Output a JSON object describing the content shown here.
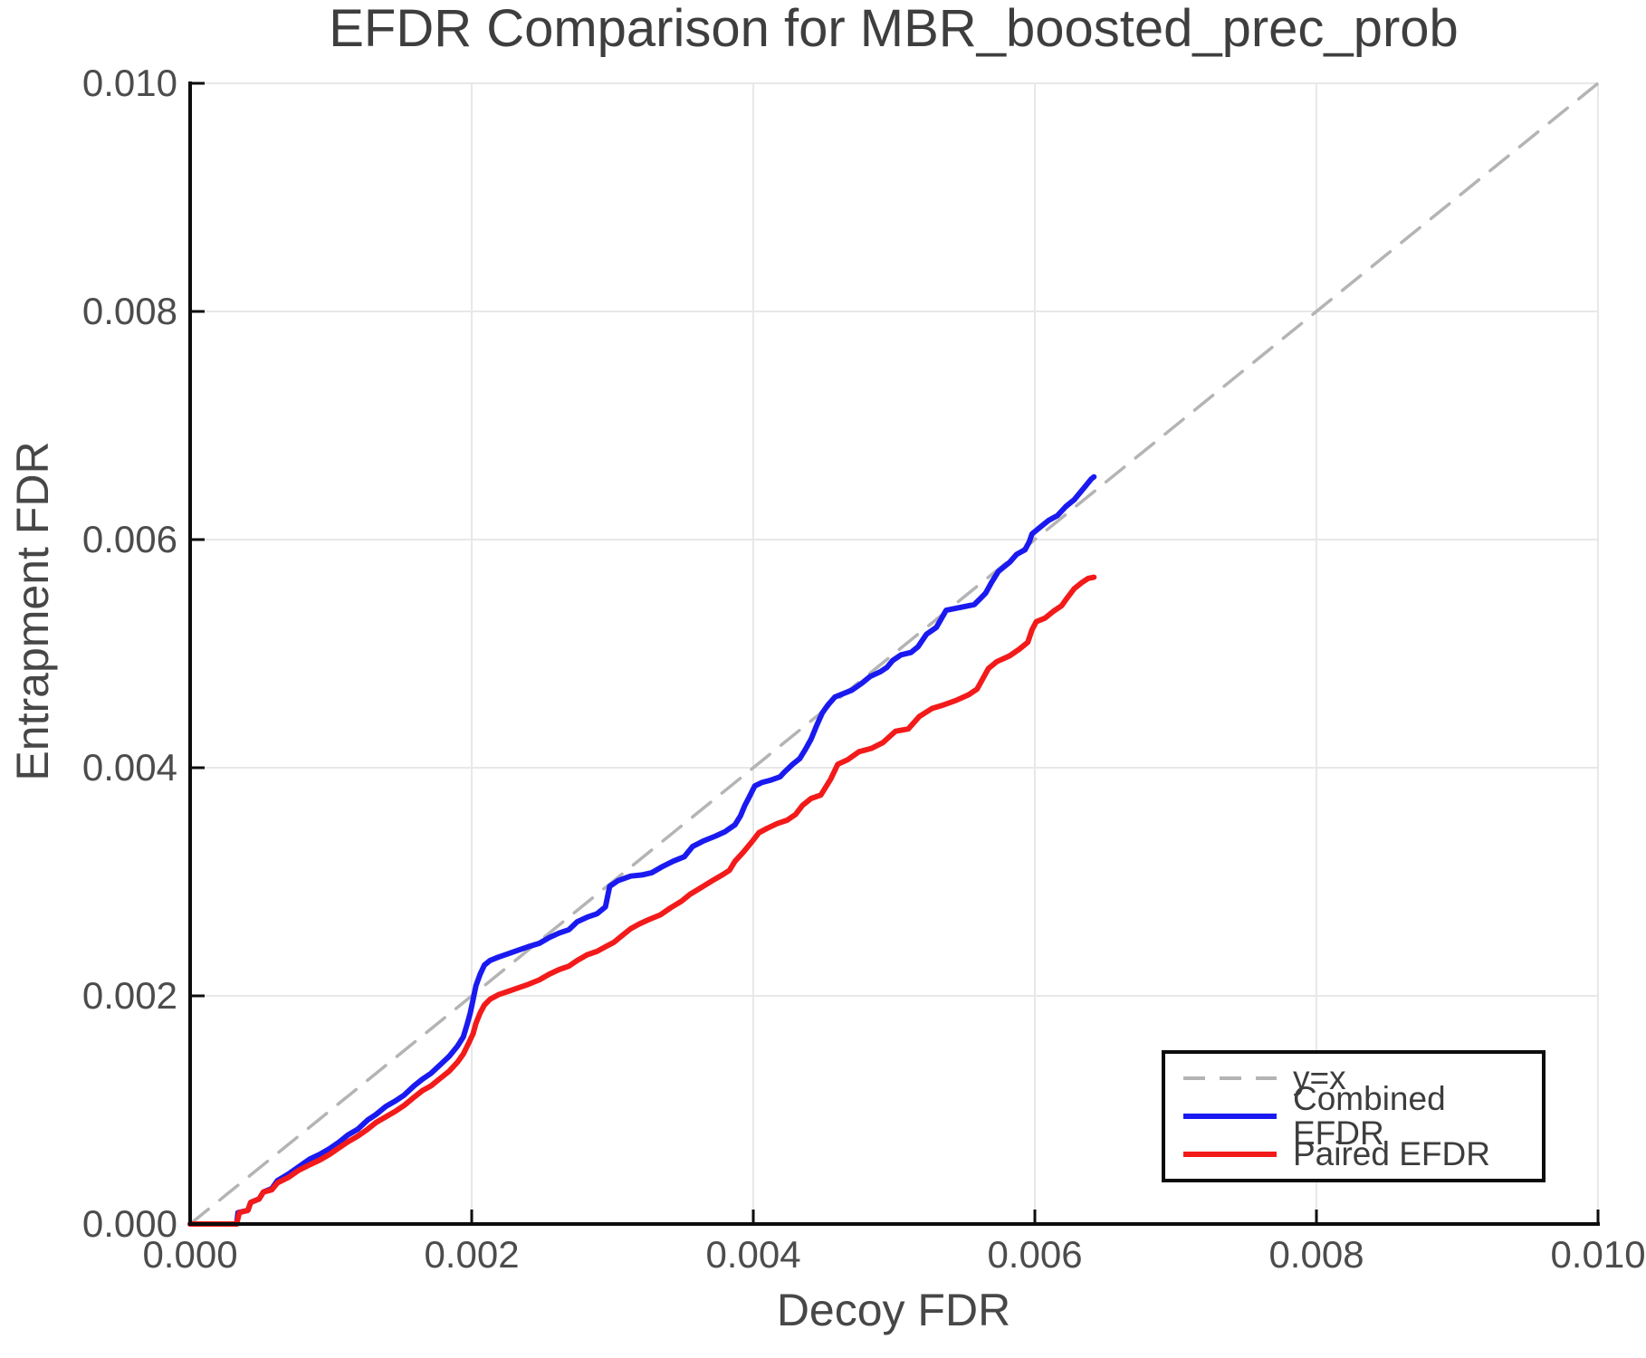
{
  "chart_data": {
    "type": "line",
    "title": "EFDR Comparison for MBR_boosted_prec_prob",
    "xlabel": "Decoy FDR",
    "ylabel": "Entrapment FDR",
    "xlim": [
      0,
      0.01
    ],
    "ylim": [
      0,
      0.01
    ],
    "x_ticks": [
      "0.000",
      "0.002",
      "0.004",
      "0.006",
      "0.008",
      "0.010"
    ],
    "y_ticks": [
      "0.000",
      "0.002",
      "0.004",
      "0.006",
      "0.008",
      "0.010"
    ],
    "grid": true,
    "legend_position": "lower right",
    "colors": {
      "diagonal": "#b4b4b4",
      "combined": "#1a1af0",
      "paired": "#f31a1a",
      "gridline": "#e8e8e8",
      "axis": "#0d0d0d"
    },
    "series": [
      {
        "name": "y=x",
        "style": "dashed",
        "color": "#b4b4b4",
        "points": [
          [
            0,
            0
          ],
          [
            0.01,
            0.01
          ]
        ]
      },
      {
        "name": "Combined EFDR",
        "style": "solid",
        "color": "#1a1af0",
        "points": [
          [
            0.0,
            0.0
          ],
          [
            0.00033,
            0.0
          ],
          [
            0.00034,
            0.0001
          ],
          [
            0.00041,
            0.00012
          ],
          [
            0.00043,
            0.00019
          ],
          [
            0.00049,
            0.00022
          ],
          [
            0.00052,
            0.00028
          ],
          [
            0.00058,
            0.00031
          ],
          [
            0.00062,
            0.00038
          ],
          [
            0.0007,
            0.00044
          ],
          [
            0.00077,
            0.0005
          ],
          [
            0.00085,
            0.00057
          ],
          [
            0.00092,
            0.00061
          ],
          [
            0.00099,
            0.00066
          ],
          [
            0.00106,
            0.00072
          ],
          [
            0.00112,
            0.00078
          ],
          [
            0.00119,
            0.00083
          ],
          [
            0.00126,
            0.00091
          ],
          [
            0.00132,
            0.00096
          ],
          [
            0.00139,
            0.00103
          ],
          [
            0.00146,
            0.00108
          ],
          [
            0.00152,
            0.00113
          ],
          [
            0.00159,
            0.00121
          ],
          [
            0.00165,
            0.00127
          ],
          [
            0.00171,
            0.00132
          ],
          [
            0.00178,
            0.0014
          ],
          [
            0.00184,
            0.00147
          ],
          [
            0.0019,
            0.00156
          ],
          [
            0.00194,
            0.00164
          ],
          [
            0.00197,
            0.00176
          ],
          [
            0.00199,
            0.00185
          ],
          [
            0.00201,
            0.00197
          ],
          [
            0.00203,
            0.00209
          ],
          [
            0.00206,
            0.00219
          ],
          [
            0.00209,
            0.00227
          ],
          [
            0.00213,
            0.00231
          ],
          [
            0.00219,
            0.00234
          ],
          [
            0.00226,
            0.00237
          ],
          [
            0.00233,
            0.0024
          ],
          [
            0.0024,
            0.00243
          ],
          [
            0.00248,
            0.00246
          ],
          [
            0.00255,
            0.00251
          ],
          [
            0.00262,
            0.00255
          ],
          [
            0.00269,
            0.00258
          ],
          [
            0.00275,
            0.00265
          ],
          [
            0.00282,
            0.00269
          ],
          [
            0.00289,
            0.00272
          ],
          [
            0.00295,
            0.00278
          ],
          [
            0.00298,
            0.00296
          ],
          [
            0.00304,
            0.00301
          ],
          [
            0.00313,
            0.00305
          ],
          [
            0.00321,
            0.00306
          ],
          [
            0.00328,
            0.00308
          ],
          [
            0.00335,
            0.00313
          ],
          [
            0.00343,
            0.00318
          ],
          [
            0.00351,
            0.00322
          ],
          [
            0.00357,
            0.00331
          ],
          [
            0.00365,
            0.00336
          ],
          [
            0.00373,
            0.0034
          ],
          [
            0.0038,
            0.00344
          ],
          [
            0.00387,
            0.0035
          ],
          [
            0.00391,
            0.00358
          ],
          [
            0.00394,
            0.00367
          ],
          [
            0.00397,
            0.00374
          ],
          [
            0.00401,
            0.00384
          ],
          [
            0.00406,
            0.00387
          ],
          [
            0.00412,
            0.00389
          ],
          [
            0.00419,
            0.00392
          ],
          [
            0.00422,
            0.00396
          ],
          [
            0.00428,
            0.00403
          ],
          [
            0.00433,
            0.00408
          ],
          [
            0.00437,
            0.00416
          ],
          [
            0.00441,
            0.00425
          ],
          [
            0.00445,
            0.00437
          ],
          [
            0.00449,
            0.00448
          ],
          [
            0.00453,
            0.00455
          ],
          [
            0.00458,
            0.00462
          ],
          [
            0.00464,
            0.00465
          ],
          [
            0.0047,
            0.00468
          ],
          [
            0.00477,
            0.00474
          ],
          [
            0.00483,
            0.0048
          ],
          [
            0.0049,
            0.00484
          ],
          [
            0.00495,
            0.00488
          ],
          [
            0.00499,
            0.00494
          ],
          [
            0.00505,
            0.00499
          ],
          [
            0.00512,
            0.00501
          ],
          [
            0.00517,
            0.00506
          ],
          [
            0.00523,
            0.00517
          ],
          [
            0.0053,
            0.00523
          ],
          [
            0.00537,
            0.00538
          ],
          [
            0.00549,
            0.00541
          ],
          [
            0.00557,
            0.00543
          ],
          [
            0.00561,
            0.00548
          ],
          [
            0.00565,
            0.00553
          ],
          [
            0.00569,
            0.00562
          ],
          [
            0.00574,
            0.00572
          ],
          [
            0.00578,
            0.00576
          ],
          [
            0.00582,
            0.0058
          ],
          [
            0.00587,
            0.00587
          ],
          [
            0.00593,
            0.00591
          ],
          [
            0.00596,
            0.00598
          ],
          [
            0.00598,
            0.00605
          ],
          [
            0.00604,
            0.00611
          ],
          [
            0.0061,
            0.00617
          ],
          [
            0.00616,
            0.00621
          ],
          [
            0.00622,
            0.00629
          ],
          [
            0.00628,
            0.00635
          ],
          [
            0.00632,
            0.00641
          ],
          [
            0.00636,
            0.00647
          ],
          [
            0.0064,
            0.00653
          ],
          [
            0.00642,
            0.00655
          ]
        ]
      },
      {
        "name": "Paired EFDR",
        "style": "solid",
        "color": "#f31a1a",
        "points": [
          [
            0.0,
            0.0
          ],
          [
            0.00033,
            0.0
          ],
          [
            0.00035,
            0.0001
          ],
          [
            0.00041,
            0.00012
          ],
          [
            0.00043,
            0.00019
          ],
          [
            0.00049,
            0.00022
          ],
          [
            0.00052,
            0.00028
          ],
          [
            0.00058,
            0.0003
          ],
          [
            0.00062,
            0.00036
          ],
          [
            0.0007,
            0.00041
          ],
          [
            0.00077,
            0.00047
          ],
          [
            0.00085,
            0.00052
          ],
          [
            0.00092,
            0.00056
          ],
          [
            0.00099,
            0.00061
          ],
          [
            0.00106,
            0.00067
          ],
          [
            0.00112,
            0.00072
          ],
          [
            0.00119,
            0.00077
          ],
          [
            0.00126,
            0.00083
          ],
          [
            0.00132,
            0.00089
          ],
          [
            0.00139,
            0.00094
          ],
          [
            0.00146,
            0.00099
          ],
          [
            0.00152,
            0.00104
          ],
          [
            0.00159,
            0.00111
          ],
          [
            0.00165,
            0.00117
          ],
          [
            0.00171,
            0.00121
          ],
          [
            0.00178,
            0.00128
          ],
          [
            0.00184,
            0.00134
          ],
          [
            0.0019,
            0.00142
          ],
          [
            0.00194,
            0.00149
          ],
          [
            0.00198,
            0.00159
          ],
          [
            0.00201,
            0.00167
          ],
          [
            0.00203,
            0.00176
          ],
          [
            0.00206,
            0.00185
          ],
          [
            0.00209,
            0.00192
          ],
          [
            0.00213,
            0.00197
          ],
          [
            0.00219,
            0.00201
          ],
          [
            0.00226,
            0.00204
          ],
          [
            0.00233,
            0.00207
          ],
          [
            0.0024,
            0.0021
          ],
          [
            0.00248,
            0.00214
          ],
          [
            0.00255,
            0.00219
          ],
          [
            0.00262,
            0.00223
          ],
          [
            0.00269,
            0.00226
          ],
          [
            0.00275,
            0.00231
          ],
          [
            0.00282,
            0.00236
          ],
          [
            0.00289,
            0.00239
          ],
          [
            0.00295,
            0.00243
          ],
          [
            0.00301,
            0.00247
          ],
          [
            0.00307,
            0.00253
          ],
          [
            0.00313,
            0.00259
          ],
          [
            0.00319,
            0.00263
          ],
          [
            0.00326,
            0.00267
          ],
          [
            0.00334,
            0.00271
          ],
          [
            0.00341,
            0.00277
          ],
          [
            0.00349,
            0.00283
          ],
          [
            0.00355,
            0.00289
          ],
          [
            0.00363,
            0.00295
          ],
          [
            0.00371,
            0.00301
          ],
          [
            0.00378,
            0.00306
          ],
          [
            0.00383,
            0.0031
          ],
          [
            0.00387,
            0.00318
          ],
          [
            0.00393,
            0.00326
          ],
          [
            0.00399,
            0.00335
          ],
          [
            0.00404,
            0.00343
          ],
          [
            0.0041,
            0.00347
          ],
          [
            0.00417,
            0.00351
          ],
          [
            0.00424,
            0.00354
          ],
          [
            0.0043,
            0.00359
          ],
          [
            0.00435,
            0.00367
          ],
          [
            0.00441,
            0.00373
          ],
          [
            0.00448,
            0.00376
          ],
          [
            0.00455,
            0.0039
          ],
          [
            0.0046,
            0.00403
          ],
          [
            0.00467,
            0.00407
          ],
          [
            0.00475,
            0.00414
          ],
          [
            0.00484,
            0.00417
          ],
          [
            0.00492,
            0.00422
          ],
          [
            0.00501,
            0.00432
          ],
          [
            0.0051,
            0.00434
          ],
          [
            0.00518,
            0.00445
          ],
          [
            0.00527,
            0.00452
          ],
          [
            0.00535,
            0.00455
          ],
          [
            0.00544,
            0.00459
          ],
          [
            0.00553,
            0.00464
          ],
          [
            0.00559,
            0.00469
          ],
          [
            0.00563,
            0.00478
          ],
          [
            0.00567,
            0.00487
          ],
          [
            0.00573,
            0.00493
          ],
          [
            0.00582,
            0.00498
          ],
          [
            0.00589,
            0.00504
          ],
          [
            0.00595,
            0.0051
          ],
          [
            0.00598,
            0.00521
          ],
          [
            0.00601,
            0.00528
          ],
          [
            0.00607,
            0.00531
          ],
          [
            0.00613,
            0.00537
          ],
          [
            0.00619,
            0.00542
          ],
          [
            0.00623,
            0.00549
          ],
          [
            0.00628,
            0.00557
          ],
          [
            0.00633,
            0.00562
          ],
          [
            0.00638,
            0.00566
          ],
          [
            0.00642,
            0.00567
          ]
        ]
      }
    ]
  }
}
